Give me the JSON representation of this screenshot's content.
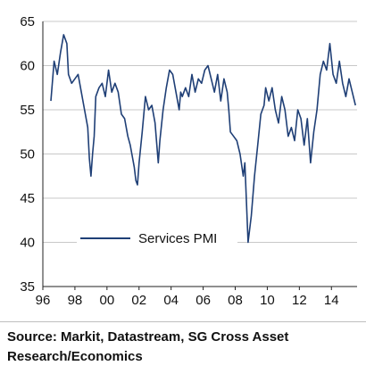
{
  "source": "Source: Markit, Datastream, SG Cross Asset Research/Economics",
  "colors": {
    "line": "#1f3f76",
    "grid": "#c8c8c8",
    "axis": "#222222"
  },
  "chart_data": {
    "type": "line",
    "title": "",
    "xlabel": "",
    "ylabel": "",
    "xlim": [
      1996,
      2015.6
    ],
    "ylim": [
      35,
      65
    ],
    "x_ticks": [
      1996,
      1998,
      2000,
      2002,
      2004,
      2006,
      2008,
      2010,
      2012,
      2014
    ],
    "x_tick_labels": [
      "96",
      "98",
      "00",
      "02",
      "04",
      "06",
      "08",
      "10",
      "12",
      "14"
    ],
    "y_ticks": [
      35,
      40,
      45,
      50,
      55,
      60,
      65
    ],
    "y_tick_labels": [
      "35",
      "40",
      "45",
      "50",
      "55",
      "60",
      "65"
    ],
    "grid": {
      "horizontal": true,
      "vertical": false
    },
    "legend": {
      "position": "lower-left",
      "entries": [
        "Services PMI"
      ]
    },
    "series": [
      {
        "name": "Services PMI",
        "x": [
          1996.5,
          1996.7,
          1996.9,
          1997.1,
          1997.3,
          1997.5,
          1997.6,
          1997.8,
          1998.0,
          1998.2,
          1998.4,
          1998.6,
          1998.8,
          1998.9,
          1999.0,
          1999.1,
          1999.2,
          1999.3,
          1999.5,
          1999.7,
          1999.9,
          2000.1,
          2000.3,
          2000.5,
          2000.7,
          2000.9,
          2001.1,
          2001.3,
          2001.45,
          2001.6,
          2001.7,
          2001.8,
          2001.9,
          2002.0,
          2002.2,
          2002.4,
          2002.6,
          2002.8,
          2003.0,
          2003.2,
          2003.3,
          2003.5,
          2003.7,
          2003.9,
          2004.1,
          2004.3,
          2004.5,
          2004.6,
          2004.7,
          2004.9,
          2005.1,
          2005.3,
          2005.5,
          2005.7,
          2005.9,
          2006.1,
          2006.3,
          2006.5,
          2006.7,
          2006.9,
          2007.1,
          2007.3,
          2007.5,
          2007.6,
          2007.7,
          2007.9,
          2008.1,
          2008.3,
          2008.5,
          2008.6,
          2008.7,
          2008.8,
          2008.9,
          2009.0,
          2009.2,
          2009.4,
          2009.6,
          2009.8,
          2009.9,
          2010.1,
          2010.3,
          2010.5,
          2010.7,
          2010.9,
          2011.1,
          2011.3,
          2011.5,
          2011.7,
          2011.9,
          2012.1,
          2012.3,
          2012.5,
          2012.6,
          2012.7,
          2012.9,
          2013.1,
          2013.3,
          2013.5,
          2013.7,
          2013.9,
          2014.1,
          2014.3,
          2014.5,
          2014.7,
          2014.9,
          2015.1,
          2015.3,
          2015.5
        ],
        "values": [
          56.0,
          60.5,
          59.0,
          61.5,
          63.5,
          62.5,
          59.0,
          58.0,
          58.5,
          59.0,
          57.0,
          55.0,
          53.0,
          49.5,
          47.5,
          50.0,
          52.0,
          56.5,
          57.5,
          58.0,
          56.5,
          59.5,
          57.0,
          58.0,
          57.0,
          54.5,
          54.0,
          52.0,
          51.0,
          49.5,
          48.5,
          47.0,
          46.5,
          49.0,
          52.5,
          56.5,
          55.0,
          55.5,
          53.5,
          49.0,
          51.5,
          55.0,
          57.5,
          59.5,
          59.0,
          57.0,
          55.0,
          57.0,
          56.5,
          57.5,
          56.5,
          59.0,
          57.0,
          58.5,
          58.0,
          59.5,
          60.0,
          58.5,
          57.0,
          59.0,
          56.0,
          58.5,
          57.0,
          55.0,
          52.5,
          52.0,
          51.5,
          50.0,
          47.5,
          49.0,
          44.5,
          40.0,
          41.5,
          43.0,
          47.5,
          51.0,
          54.5,
          55.5,
          57.5,
          56.0,
          57.5,
          55.0,
          53.5,
          56.5,
          55.0,
          52.0,
          53.0,
          51.5,
          55.0,
          54.0,
          51.0,
          54.0,
          51.5,
          49.0,
          52.5,
          55.0,
          59.0,
          60.5,
          59.5,
          62.5,
          59.0,
          58.0,
          60.5,
          58.0,
          56.5,
          58.5,
          57.0,
          55.5
        ]
      }
    ]
  }
}
